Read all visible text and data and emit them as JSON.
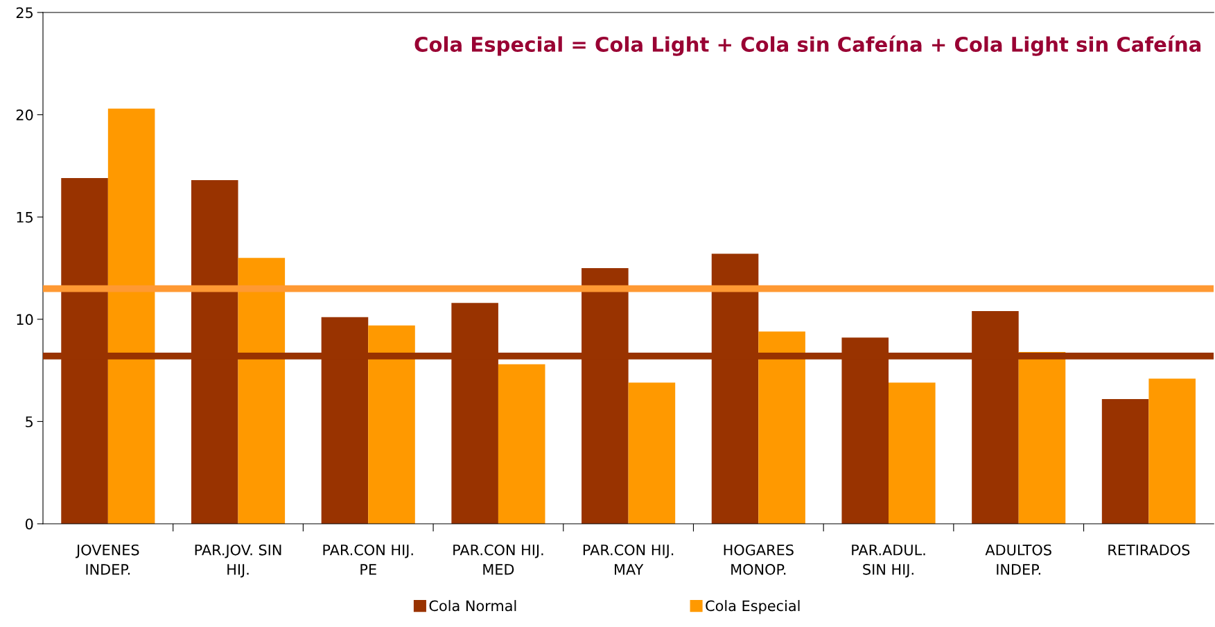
{
  "chart_data": {
    "type": "bar",
    "categories": [
      "JOVENES\nINDEP.",
      "PAR.JOV. SIN\nHIJ.",
      "PAR.CON HIJ.\nPE",
      "PAR.CON HIJ.\nMED",
      "PAR.CON HIJ.\nMAY",
      "HOGARES\nMONOP.",
      "PAR.ADUL.\nSIN HIJ.",
      "ADULTOS\nINDEP.",
      "RETIRADOS"
    ],
    "series": [
      {
        "name": "Cola Normal",
        "color": "#993300",
        "values": [
          16.9,
          16.8,
          10.1,
          10.8,
          12.5,
          13.2,
          9.1,
          10.4,
          6.1
        ]
      },
      {
        "name": "Cola Especial",
        "color": "#ff9900",
        "values": [
          20.3,
          13.0,
          9.7,
          7.8,
          6.9,
          9.4,
          6.9,
          8.4,
          7.1
        ]
      }
    ],
    "ylim": [
      0,
      25
    ],
    "yticks": [
      0,
      5,
      10,
      15,
      20,
      25
    ],
    "ref_lines": [
      {
        "axis": "y",
        "value": 11.5,
        "color": "#ff9933"
      },
      {
        "axis": "y",
        "value": 8.2,
        "color": "#993300"
      }
    ],
    "annotations": [
      "Cola Especial = Cola Light + Cola sin Cafeína + Cola Light sin Cafeína"
    ],
    "legend": "bottom",
    "grid": false
  }
}
